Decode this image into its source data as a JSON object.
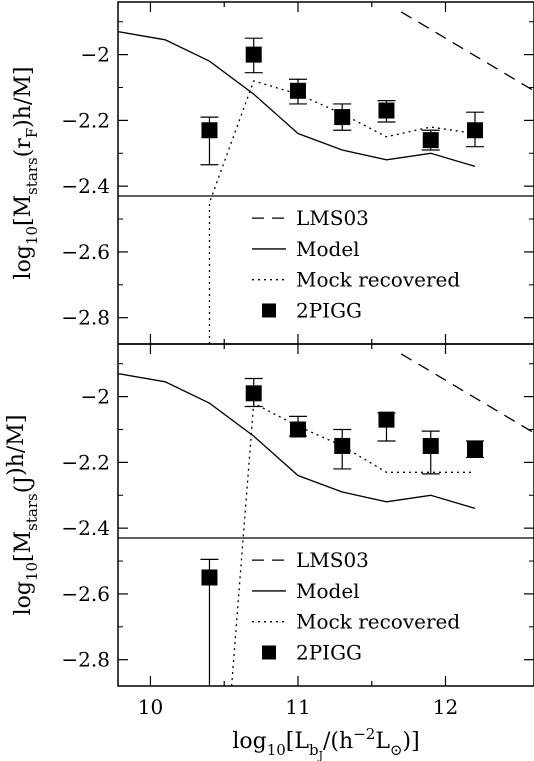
{
  "figure": {
    "xlabel": "log10[Lbj/(h−2L⊙)]",
    "xlabel_parts": {
      "pre": "log",
      "pre_sub": "10",
      "open": "[L",
      "lsub": "b",
      "lsub2": "J",
      "mid": "/(h",
      "sup": "−2",
      "after": "L",
      "sun_sub": "⊙",
      "close": ")]"
    }
  },
  "chart_data": [
    {
      "type": "line",
      "panel": "top",
      "ylabel": "log10[Mstars(rF)h/M]",
      "ylabel_parts": {
        "pre": "log",
        "pre_sub": "10",
        "open": "[M",
        "msub": "stars",
        "arg": "(r",
        "arg_sub": "F",
        "rest": ")h/M]"
      },
      "xlim": [
        9.78,
        12.6
      ],
      "ylim": [
        -2.88,
        -1.84
      ],
      "log_scale": false,
      "grid": false,
      "legend_placement": "lower-center",
      "x_ticks": [
        10,
        10.5,
        11,
        11.5,
        12
      ],
      "x_major_ticks": [
        10,
        11,
        12
      ],
      "y_ticks": [
        -2.8,
        -2.6,
        -2.4,
        -2.2,
        -2.0
      ],
      "y_tick_labels": [
        "−2.8",
        "−2.6",
        "−2.4",
        "−2.2",
        "−2"
      ],
      "hline": -2.43,
      "series": [
        {
          "name": "LMS03",
          "style": "dashed",
          "x": [
            11.7,
            12.6
          ],
          "y": [
            -1.87,
            -2.11
          ]
        },
        {
          "name": "Model",
          "style": "solid",
          "x": [
            9.78,
            10.1,
            10.4,
            10.7,
            11.0,
            11.3,
            11.6,
            11.9,
            12.2
          ],
          "y": [
            -1.93,
            -1.955,
            -2.02,
            -2.12,
            -2.24,
            -2.29,
            -2.32,
            -2.3,
            -2.34
          ]
        },
        {
          "name": "Mock recovered",
          "style": "dotted",
          "x": [
            10.4,
            10.4,
            10.7,
            11.0,
            11.3,
            11.6,
            11.9,
            12.2
          ],
          "y": [
            -2.88,
            -2.45,
            -2.08,
            -2.12,
            -2.18,
            -2.25,
            -2.22,
            -2.24
          ]
        },
        {
          "name": "2PIGG",
          "style": "square_errorbar",
          "x": [
            10.4,
            10.7,
            11.0,
            11.3,
            11.6,
            11.9,
            12.2
          ],
          "y": [
            -2.23,
            -2.0,
            -2.11,
            -2.19,
            -2.17,
            -2.26,
            -2.23
          ],
          "err_low": [
            -2.335,
            -2.055,
            -2.15,
            -2.23,
            -2.205,
            -2.29,
            -2.28
          ],
          "err_high": [
            -2.19,
            -1.95,
            -2.075,
            -2.15,
            -2.14,
            -2.23,
            -2.175
          ]
        }
      ]
    },
    {
      "type": "line",
      "panel": "bottom",
      "ylabel": "log10[Mstars(J)h/M]",
      "ylabel_parts": {
        "pre": "log",
        "pre_sub": "10",
        "open": "[M",
        "msub": "stars",
        "arg": "(J",
        "arg_sub": "",
        "rest": ")h/M]"
      },
      "xlim": [
        9.78,
        12.6
      ],
      "ylim": [
        -2.88,
        -1.84
      ],
      "log_scale": false,
      "grid": false,
      "legend_placement": "lower-center",
      "x_ticks": [
        10,
        10.5,
        11,
        11.5,
        12
      ],
      "x_major_ticks": [
        10,
        11,
        12
      ],
      "x_tick_labels": [
        "10",
        "11",
        "12"
      ],
      "y_ticks": [
        -2.8,
        -2.6,
        -2.4,
        -2.2,
        -2.0
      ],
      "y_tick_labels": [
        "−2.8",
        "−2.6",
        "−2.4",
        "−2.2",
        "−2"
      ],
      "hline": -2.43,
      "series": [
        {
          "name": "LMS03",
          "style": "dashed",
          "x": [
            11.7,
            12.6
          ],
          "y": [
            -1.87,
            -2.11
          ]
        },
        {
          "name": "Model",
          "style": "solid",
          "x": [
            9.78,
            10.1,
            10.4,
            10.7,
            11.0,
            11.3,
            11.6,
            11.9,
            12.2
          ],
          "y": [
            -1.93,
            -1.955,
            -2.02,
            -2.12,
            -2.24,
            -2.29,
            -2.32,
            -2.3,
            -2.34
          ]
        },
        {
          "name": "Mock recovered",
          "style": "dotted",
          "x": [
            10.55,
            10.7,
            11.0,
            11.3,
            11.6,
            11.9,
            12.2
          ],
          "y": [
            -2.88,
            -2.02,
            -2.09,
            -2.15,
            -2.23,
            -2.23,
            -2.23
          ]
        },
        {
          "name": "2PIGG",
          "style": "square_errorbar",
          "x": [
            10.4,
            10.7,
            11.0,
            11.3,
            11.6,
            11.9,
            12.2
          ],
          "y": [
            -2.55,
            -1.99,
            -2.1,
            -2.15,
            -2.07,
            -2.15,
            -2.16
          ],
          "err_low": [
            -2.88,
            -2.03,
            -2.12,
            -2.22,
            -2.135,
            -2.235,
            -2.185
          ],
          "err_high": [
            -2.495,
            -1.945,
            -2.06,
            -2.1,
            -2.05,
            -2.105,
            -2.135
          ]
        }
      ]
    }
  ]
}
